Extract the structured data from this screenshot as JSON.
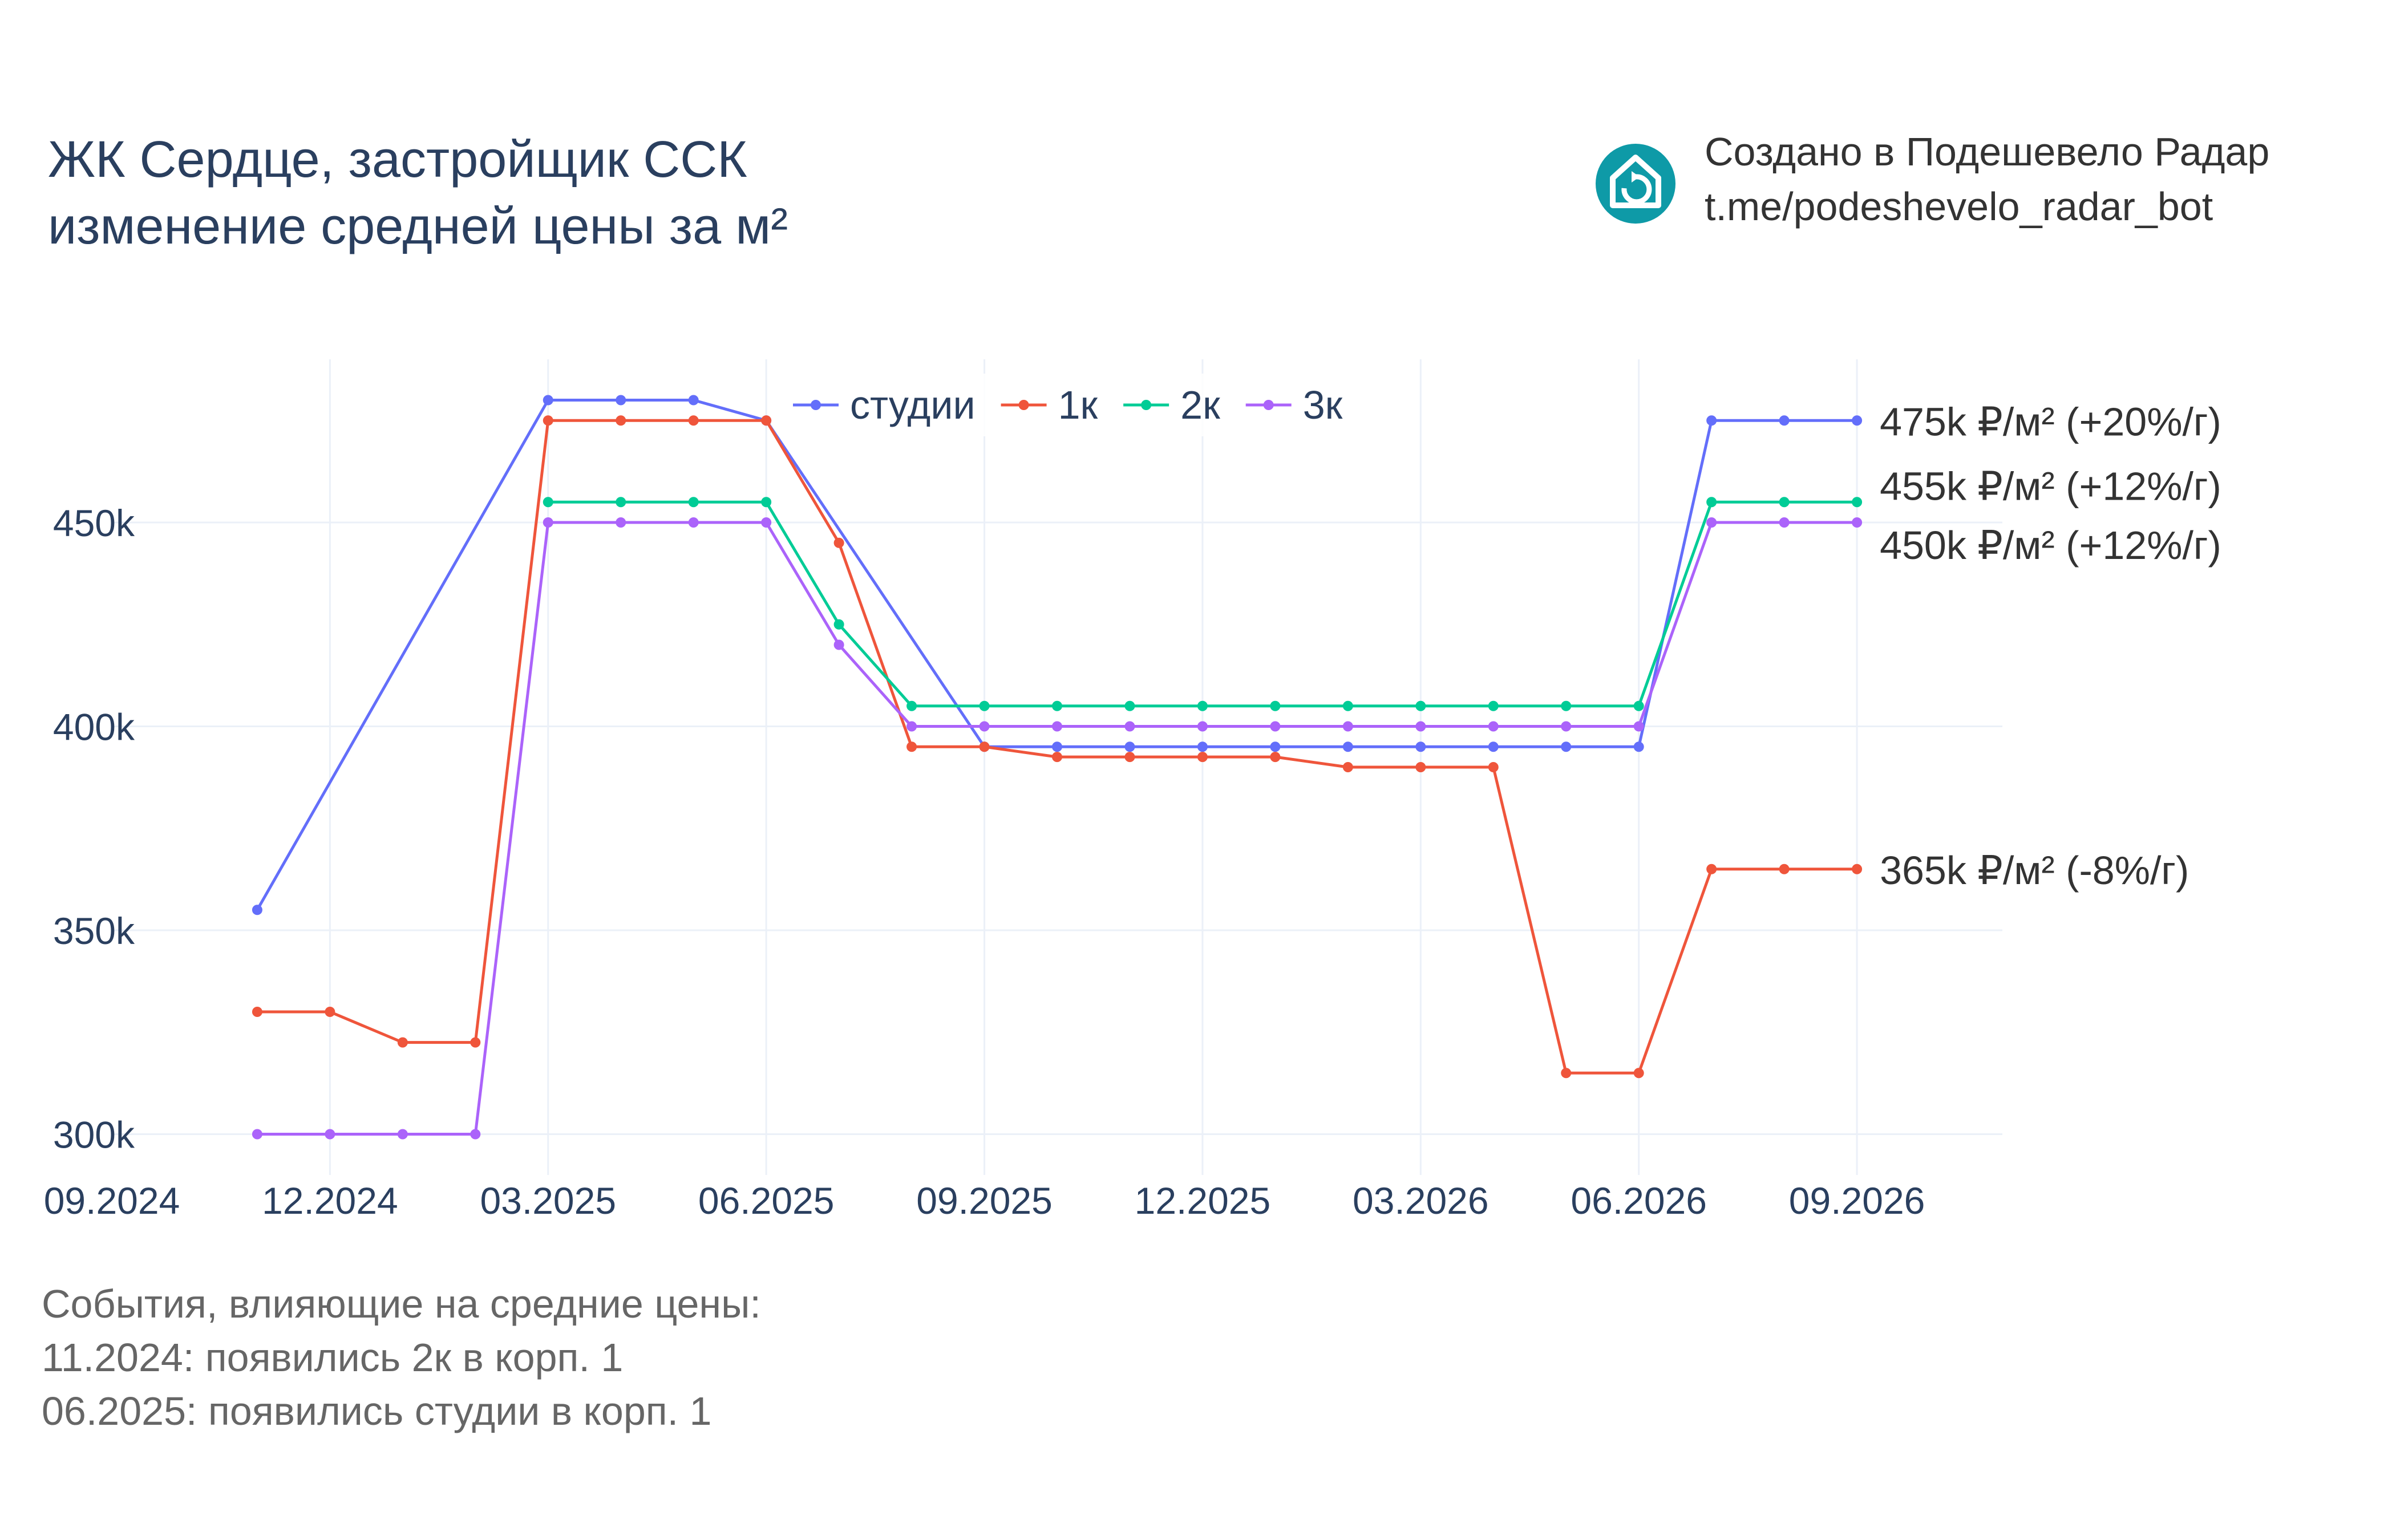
{
  "title": {
    "line1": "ЖК Сердце, застройщик ССК",
    "line2": "изменение средней цены за м²"
  },
  "branding": {
    "logo_icon": "house-refresh-icon",
    "line1": "Создано в Подешевело Радар",
    "line2": "t.me/podeshevelo_radar_bot",
    "logo_color": "#0E9AA7"
  },
  "events": {
    "heading": "События, влияющие на средние цены:",
    "items": [
      "11.2024: появились 2к в корп. 1",
      "06.2025: появились студии в корп. 1"
    ]
  },
  "chart_data": {
    "type": "line",
    "x": [
      "2024-11",
      "2024-12",
      "2025-01",
      "2025-02",
      "2025-03",
      "2025-04",
      "2025-05",
      "2025-06",
      "2025-07",
      "2025-08",
      "2025-09",
      "2025-10",
      "2025-11",
      "2025-12",
      "2026-01",
      "2026-02",
      "2026-03",
      "2026-04",
      "2026-05",
      "2026-06",
      "2026-07",
      "2026-08",
      "2026-09"
    ],
    "x_ticks": [
      "09.2024",
      "12.2024",
      "03.2025",
      "06.2025",
      "09.2025",
      "12.2025",
      "03.2026",
      "06.2026",
      "09.2026"
    ],
    "x_tick_dates": [
      "2024-09",
      "2024-12",
      "2025-03",
      "2025-06",
      "2025-09",
      "2025-12",
      "2026-03",
      "2026-06",
      "2026-09"
    ],
    "xlim": [
      "2024-09",
      "2026-11"
    ],
    "ylim": [
      290000,
      490000
    ],
    "y_ticks": [
      300000,
      350000,
      400000,
      450000
    ],
    "y_tick_labels": [
      "300k",
      "350k",
      "400k",
      "450k"
    ],
    "grid": true,
    "legend_position": "top-center",
    "series": [
      {
        "name": "студии",
        "color": "#636EFA",
        "values": [
          355000,
          null,
          null,
          null,
          480000,
          480000,
          480000,
          475000,
          null,
          null,
          395000,
          395000,
          395000,
          395000,
          395000,
          395000,
          395000,
          395000,
          395000,
          395000,
          475000,
          475000,
          475000
        ],
        "end_label": "475k ₽/м² (+20%/г)"
      },
      {
        "name": "1к",
        "color": "#EF553B",
        "values": [
          330000,
          330000,
          322500,
          322500,
          475000,
          475000,
          475000,
          475000,
          445000,
          395000,
          395000,
          392500,
          392500,
          392500,
          392500,
          390000,
          390000,
          390000,
          315000,
          315000,
          365000,
          365000,
          365000
        ],
        "end_label": "365k ₽/м² (-8%/г)"
      },
      {
        "name": "2к",
        "color": "#00CC96",
        "values": [
          null,
          null,
          null,
          null,
          455000,
          455000,
          455000,
          455000,
          425000,
          405000,
          405000,
          405000,
          405000,
          405000,
          405000,
          405000,
          405000,
          405000,
          405000,
          405000,
          455000,
          455000,
          455000
        ],
        "end_label": "455k ₽/м² (+12%/г)"
      },
      {
        "name": "3к",
        "color": "#AB63FA",
        "values": [
          300000,
          300000,
          300000,
          300000,
          450000,
          450000,
          450000,
          450000,
          420000,
          400000,
          400000,
          400000,
          400000,
          400000,
          400000,
          400000,
          400000,
          400000,
          400000,
          400000,
          450000,
          450000,
          450000
        ],
        "end_label": "450k ₽/м² (+12%/г)"
      }
    ]
  }
}
